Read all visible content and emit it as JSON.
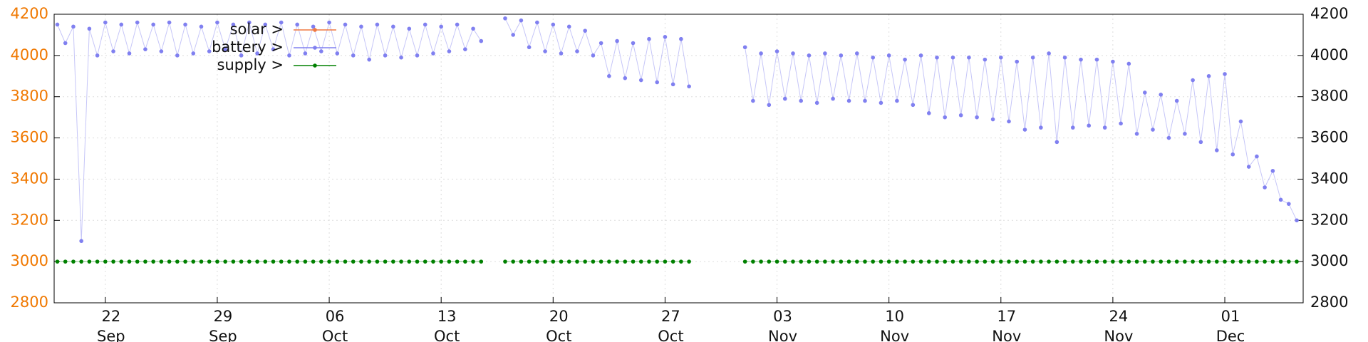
{
  "chart_data": {
    "type": "line",
    "x": [
      "19 Sep",
      "19 Sep",
      "20 Sep",
      "20 Sep",
      "21 Sep",
      "21 Sep",
      "22 Sep",
      "22 Sep",
      "23 Sep",
      "23 Sep",
      "24 Sep",
      "24 Sep",
      "25 Sep",
      "25 Sep",
      "26 Sep",
      "26 Sep",
      "27 Sep",
      "27 Sep",
      "28 Sep",
      "28 Sep",
      "29 Sep",
      "29 Sep",
      "30 Sep",
      "30 Sep",
      "01 Oct",
      "01 Oct",
      "02 Oct",
      "02 Oct",
      "03 Oct",
      "03 Oct",
      "04 Oct",
      "04 Oct",
      "05 Oct",
      "05 Oct",
      "06 Oct",
      "06 Oct",
      "07 Oct",
      "07 Oct",
      "08 Oct",
      "08 Oct",
      "09 Oct",
      "09 Oct",
      "10 Oct",
      "10 Oct",
      "11 Oct",
      "11 Oct",
      "12 Oct",
      "12 Oct",
      "13 Oct",
      "13 Oct",
      "14 Oct",
      "14 Oct",
      "15 Oct",
      "15 Oct",
      "16 Oct",
      "16 Oct",
      "17 Oct",
      "17 Oct",
      "18 Oct",
      "18 Oct",
      "19 Oct",
      "19 Oct",
      "20 Oct",
      "20 Oct",
      "21 Oct",
      "21 Oct",
      "22 Oct",
      "22 Oct",
      "23 Oct",
      "23 Oct",
      "24 Oct",
      "24 Oct",
      "25 Oct",
      "25 Oct",
      "26 Oct",
      "26 Oct",
      "27 Oct",
      "27 Oct",
      "28 Oct",
      "28 Oct",
      "29 Oct",
      "29 Oct",
      "30 Oct",
      "30 Oct",
      "31 Oct",
      "31 Oct",
      "01 Nov",
      "01 Nov",
      "02 Nov",
      "02 Nov",
      "03 Nov",
      "03 Nov",
      "04 Nov",
      "04 Nov",
      "05 Nov",
      "05 Nov",
      "06 Nov",
      "06 Nov",
      "07 Nov",
      "07 Nov",
      "08 Nov",
      "08 Nov",
      "09 Nov",
      "09 Nov",
      "10 Nov",
      "10 Nov",
      "11 Nov",
      "11 Nov",
      "12 Nov",
      "12 Nov",
      "13 Nov",
      "13 Nov",
      "14 Nov",
      "14 Nov",
      "15 Nov",
      "15 Nov",
      "16 Nov",
      "16 Nov",
      "17 Nov",
      "17 Nov",
      "18 Nov",
      "18 Nov",
      "19 Nov",
      "19 Nov",
      "20 Nov",
      "20 Nov",
      "21 Nov",
      "21 Nov",
      "22 Nov",
      "22 Nov",
      "23 Nov",
      "23 Nov",
      "24 Nov",
      "24 Nov",
      "25 Nov",
      "25 Nov",
      "26 Nov",
      "26 Nov",
      "27 Nov",
      "27 Nov",
      "28 Nov",
      "28 Nov",
      "29 Nov",
      "29 Nov",
      "30 Nov",
      "30 Nov",
      "01 Dec",
      "01 Dec",
      "02 Dec",
      "02 Dec",
      "03 Dec",
      "03 Dec",
      "04 Dec",
      "04 Dec",
      "05 Dec",
      "05 Dec"
    ],
    "series": [
      {
        "name": "solar >",
        "color": "#f07840",
        "values": [
          null,
          null,
          null,
          null,
          null,
          null,
          null,
          null,
          null,
          null,
          null,
          null,
          null,
          null,
          null,
          null,
          null,
          null,
          null,
          null,
          null,
          null,
          null,
          null,
          null,
          null,
          null,
          null,
          null,
          null,
          null,
          null,
          null,
          null,
          null,
          null,
          null,
          null,
          null,
          null,
          null,
          null,
          null,
          null,
          null,
          null,
          null,
          null,
          null,
          null,
          null,
          null,
          null,
          null,
          null,
          null,
          null,
          null,
          null,
          null,
          null,
          null,
          null,
          null,
          null,
          null,
          null,
          null,
          null,
          null,
          null,
          null,
          null,
          null,
          null,
          null,
          null,
          null,
          null,
          null,
          null,
          null,
          null,
          null,
          null,
          null,
          null,
          null,
          null,
          null,
          null,
          null,
          null,
          null,
          null,
          null,
          null,
          null,
          null,
          null,
          null,
          null,
          null,
          null,
          null,
          null,
          null,
          null,
          null,
          null,
          null,
          null,
          null,
          null,
          null,
          null,
          null,
          null,
          null,
          null,
          null,
          null,
          null,
          null,
          null,
          null,
          null,
          null,
          null,
          null,
          null,
          null,
          null,
          null,
          null,
          null,
          null,
          null,
          null,
          null,
          null,
          null,
          null,
          null,
          null,
          null,
          null,
          null,
          null,
          null,
          null,
          null,
          null,
          null,
          null,
          null
        ]
      },
      {
        "name": "battery >",
        "color": "#8080f0",
        "values": [
          4150,
          4060,
          4140,
          3100,
          4130,
          4000,
          4160,
          4020,
          4150,
          4010,
          4160,
          4030,
          4150,
          4020,
          4160,
          4000,
          4150,
          4010,
          4140,
          4020,
          4160,
          4030,
          4150,
          4000,
          4160,
          4010,
          4150,
          4030,
          4160,
          4000,
          4150,
          4010,
          4140,
          4020,
          4160,
          4010,
          4150,
          4000,
          4140,
          3980,
          4150,
          4000,
          4140,
          3990,
          4130,
          4000,
          4150,
          4010,
          4140,
          4020,
          4150,
          4030,
          4130,
          4070,
          null,
          null,
          4180,
          4100,
          4170,
          4040,
          4160,
          4020,
          4150,
          4010,
          4140,
          4020,
          4120,
          4000,
          4060,
          3900,
          4070,
          3890,
          4060,
          3880,
          4080,
          3870,
          4090,
          3860,
          4080,
          3850,
          null,
          null,
          null,
          null,
          null,
          null,
          4040,
          3780,
          4010,
          3760,
          4020,
          3790,
          4010,
          3780,
          4000,
          3770,
          4010,
          3790,
          4000,
          3780,
          4010,
          3780,
          3990,
          3770,
          4000,
          3780,
          3980,
          3760,
          4000,
          3720,
          3990,
          3700,
          3990,
          3710,
          3990,
          3700,
          3980,
          3690,
          3990,
          3680,
          3970,
          3640,
          3990,
          3650,
          4010,
          3580,
          3990,
          3650,
          3980,
          3660,
          3980,
          3650,
          3970,
          3670,
          3960,
          3620,
          3820,
          3640,
          3810,
          3600,
          3780,
          3620,
          3880,
          3580,
          3900,
          3540,
          3910,
          3520,
          3680,
          3460,
          3510,
          3360,
          3440,
          3300,
          3280,
          3200
        ]
      },
      {
        "name": "supply >",
        "color": "#008000",
        "values": [
          3000,
          3000,
          3000,
          3000,
          3000,
          3000,
          3000,
          3000,
          3000,
          3000,
          3000,
          3000,
          3000,
          3000,
          3000,
          3000,
          3000,
          3000,
          3000,
          3000,
          3000,
          3000,
          3000,
          3000,
          3000,
          3000,
          3000,
          3000,
          3000,
          3000,
          3000,
          3000,
          3000,
          3000,
          3000,
          3000,
          3000,
          3000,
          3000,
          3000,
          3000,
          3000,
          3000,
          3000,
          3000,
          3000,
          3000,
          3000,
          3000,
          3000,
          3000,
          3000,
          3000,
          3000,
          null,
          null,
          3000,
          3000,
          3000,
          3000,
          3000,
          3000,
          3000,
          3000,
          3000,
          3000,
          3000,
          3000,
          3000,
          3000,
          3000,
          3000,
          3000,
          3000,
          3000,
          3000,
          3000,
          3000,
          3000,
          3000,
          null,
          null,
          null,
          null,
          null,
          null,
          3000,
          3000,
          3000,
          3000,
          3000,
          3000,
          3000,
          3000,
          3000,
          3000,
          3000,
          3000,
          3000,
          3000,
          3000,
          3000,
          3000,
          3000,
          3000,
          3000,
          3000,
          3000,
          3000,
          3000,
          3000,
          3000,
          3000,
          3000,
          3000,
          3000,
          3000,
          3000,
          3000,
          3000,
          3000,
          3000,
          3000,
          3000,
          3000,
          3000,
          3000,
          3000,
          3000,
          3000,
          3000,
          3000,
          3000,
          3000,
          3000,
          3000,
          3000,
          3000,
          3000,
          3000,
          3000,
          3000,
          3000,
          3000,
          3000,
          3000,
          3000,
          3000,
          3000,
          3000,
          3000,
          3000,
          3000,
          3000,
          3000,
          3000
        ]
      }
    ],
    "xticks": [
      "22 Sep",
      "29 Sep",
      "06 Oct",
      "13 Oct",
      "20 Oct",
      "27 Oct",
      "03 Nov",
      "10 Nov",
      "17 Nov",
      "24 Nov",
      "01 Dec"
    ],
    "ylim": [
      2800,
      4200
    ],
    "yticks": [
      2800,
      3000,
      3200,
      3400,
      3600,
      3800,
      4000,
      4200
    ],
    "ytick_color": "#f07800",
    "y2lim": [
      2800,
      4200
    ],
    "y2ticks": [
      2800,
      3000,
      3200,
      3400,
      3600,
      3800,
      4000,
      4200
    ],
    "grid": true
  }
}
